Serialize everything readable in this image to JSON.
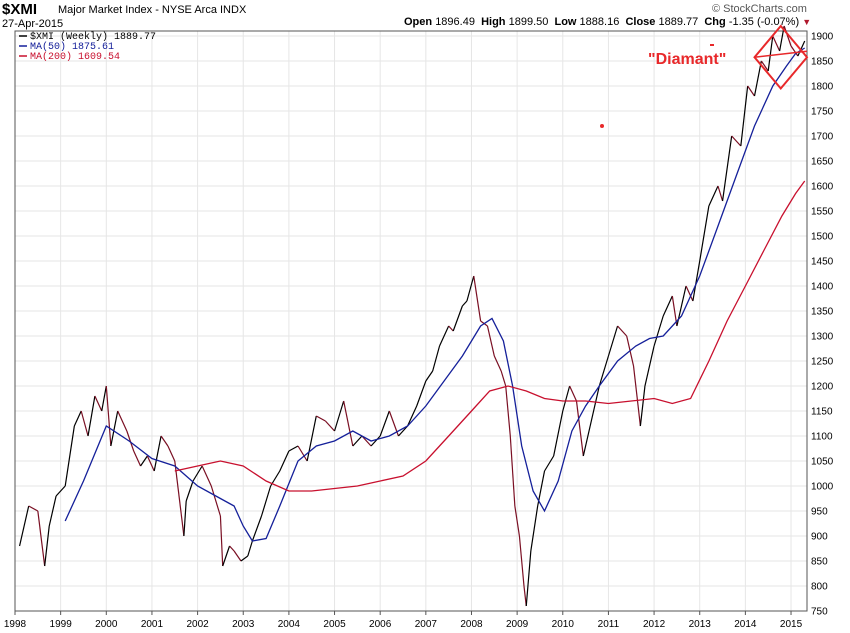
{
  "header": {
    "symbol": "$XMI",
    "index_name": "Major Market Index - NYSE Arca INDX",
    "date": "27-Apr-2015",
    "open_label": "Open",
    "open": "1896.49",
    "high_label": "High",
    "high": "1899.50",
    "low_label": "Low",
    "low": "1888.16",
    "close_label": "Close",
    "close": "1889.77",
    "chg_label": "Chg",
    "chg": "-1.35 (-0.07%)",
    "brand": "© StockCharts.com"
  },
  "legend": {
    "price": "$XMI (Weekly) 1889.77",
    "ma50": "MA(50) 1875.61",
    "ma200": "MA(200) 1609.54"
  },
  "annotation": {
    "label": "\"Diamant\""
  },
  "colors": {
    "price": "#7a0f23",
    "price_up": "#000000",
    "ma50": "#15209a",
    "ma200": "#c8102e",
    "annotation": "#e8282a",
    "grid": "#e6e6e6"
  },
  "chart_data": {
    "type": "line",
    "title": "$XMI Major Market Index - NYSE Arca INDX (Weekly)",
    "xlabel": "",
    "ylabel": "",
    "xlim": [
      1998.0,
      2015.35
    ],
    "ylim": [
      750,
      1910
    ],
    "x_ticks": [
      "1998",
      "1999",
      "2000",
      "2001",
      "2002",
      "2003",
      "2004",
      "2005",
      "2006",
      "2007",
      "2008",
      "2009",
      "2010",
      "2011",
      "2012",
      "2013",
      "2014",
      "2015"
    ],
    "y_ticks": [
      750,
      800,
      850,
      900,
      950,
      1000,
      1050,
      1100,
      1150,
      1200,
      1250,
      1300,
      1350,
      1400,
      1450,
      1500,
      1550,
      1600,
      1650,
      1700,
      1750,
      1800,
      1850,
      1900
    ],
    "series": [
      {
        "name": "$XMI (Weekly)",
        "x": [
          1998.1,
          1998.3,
          1998.5,
          1998.65,
          1998.75,
          1998.9,
          1999.1,
          1999.3,
          1999.45,
          1999.6,
          1999.75,
          1999.9,
          2000.0,
          2000.1,
          2000.25,
          2000.45,
          2000.6,
          2000.75,
          2000.9,
          2001.05,
          2001.2,
          2001.35,
          2001.5,
          2001.7,
          2001.75,
          2001.9,
          2002.1,
          2002.3,
          2002.5,
          2002.55,
          2002.7,
          2002.8,
          2002.95,
          2003.1,
          2003.2,
          2003.4,
          2003.6,
          2003.8,
          2004.0,
          2004.2,
          2004.4,
          2004.6,
          2004.8,
          2005.0,
          2005.2,
          2005.4,
          2005.6,
          2005.8,
          2006.0,
          2006.2,
          2006.4,
          2006.6,
          2006.8,
          2007.0,
          2007.15,
          2007.3,
          2007.5,
          2007.6,
          2007.8,
          2007.9,
          2008.05,
          2008.2,
          2008.35,
          2008.5,
          2008.65,
          2008.75,
          2008.85,
          2008.95,
          2009.05,
          2009.15,
          2009.2,
          2009.3,
          2009.45,
          2009.6,
          2009.8,
          2010.0,
          2010.15,
          2010.3,
          2010.45,
          2010.6,
          2010.8,
          2011.0,
          2011.2,
          2011.4,
          2011.55,
          2011.7,
          2011.8,
          2012.0,
          2012.2,
          2012.4,
          2012.5,
          2012.7,
          2012.85,
          2013.0,
          2013.2,
          2013.4,
          2013.5,
          2013.7,
          2013.9,
          2014.05,
          2014.2,
          2014.35,
          2014.5,
          2014.6,
          2014.75,
          2014.85,
          2015.0,
          2015.15,
          2015.3
        ],
        "values": [
          880,
          960,
          950,
          840,
          920,
          980,
          1000,
          1120,
          1150,
          1100,
          1180,
          1150,
          1200,
          1080,
          1150,
          1110,
          1070,
          1040,
          1060,
          1030,
          1100,
          1080,
          1050,
          900,
          970,
          1010,
          1040,
          1000,
          940,
          840,
          880,
          870,
          850,
          860,
          890,
          940,
          1000,
          1030,
          1070,
          1080,
          1050,
          1140,
          1130,
          1110,
          1170,
          1080,
          1100,
          1080,
          1100,
          1150,
          1100,
          1120,
          1160,
          1210,
          1230,
          1280,
          1320,
          1310,
          1360,
          1370,
          1420,
          1330,
          1320,
          1260,
          1230,
          1200,
          1100,
          960,
          900,
          800,
          760,
          870,
          960,
          1030,
          1060,
          1150,
          1200,
          1170,
          1060,
          1120,
          1200,
          1260,
          1320,
          1300,
          1240,
          1120,
          1200,
          1280,
          1340,
          1380,
          1320,
          1400,
          1370,
          1450,
          1560,
          1600,
          1570,
          1700,
          1680,
          1800,
          1780,
          1850,
          1830,
          1900,
          1870,
          1920,
          1880,
          1860,
          1890
        ]
      },
      {
        "name": "MA(50)",
        "x": [
          1999.1,
          1999.5,
          2000.0,
          2000.5,
          2001.0,
          2001.5,
          2002.0,
          2002.5,
          2002.8,
          2003.0,
          2003.2,
          2003.5,
          2003.8,
          2004.2,
          2004.6,
          2005.0,
          2005.4,
          2005.8,
          2006.2,
          2006.6,
          2007.0,
          2007.4,
          2007.8,
          2008.2,
          2008.45,
          2008.7,
          2008.9,
          2009.1,
          2009.35,
          2009.6,
          2009.9,
          2010.2,
          2010.5,
          2010.8,
          2011.2,
          2011.6,
          2011.9,
          2012.2,
          2012.6,
          2013.0,
          2013.4,
          2013.8,
          2014.2,
          2014.6,
          2014.9,
          2015.1,
          2015.3
        ],
        "values": [
          930,
          1010,
          1120,
          1090,
          1055,
          1040,
          1000,
          975,
          960,
          920,
          890,
          895,
          960,
          1050,
          1080,
          1090,
          1110,
          1090,
          1100,
          1120,
          1160,
          1210,
          1260,
          1320,
          1335,
          1290,
          1200,
          1080,
          990,
          950,
          1010,
          1110,
          1160,
          1200,
          1250,
          1280,
          1295,
          1300,
          1340,
          1420,
          1520,
          1620,
          1720,
          1800,
          1840,
          1865,
          1876
        ]
      },
      {
        "name": "MA(200)",
        "x": [
          2001.5,
          2002.0,
          2002.5,
          2003.0,
          2003.5,
          2004.0,
          2004.5,
          2005.0,
          2005.5,
          2006.0,
          2006.5,
          2007.0,
          2007.5,
          2008.0,
          2008.4,
          2008.8,
          2009.2,
          2009.6,
          2010.0,
          2010.5,
          2011.0,
          2011.5,
          2012.0,
          2012.4,
          2012.8,
          2013.2,
          2013.6,
          2014.0,
          2014.4,
          2014.8,
          2015.1,
          2015.3
        ],
        "values": [
          1030,
          1040,
          1050,
          1040,
          1010,
          990,
          990,
          995,
          1000,
          1010,
          1020,
          1050,
          1100,
          1150,
          1190,
          1200,
          1190,
          1175,
          1170,
          1170,
          1165,
          1170,
          1175,
          1165,
          1175,
          1250,
          1330,
          1400,
          1470,
          1540,
          1585,
          1610
        ]
      }
    ],
    "annotations": [
      {
        "text": "\"Diamant\"",
        "shape": "diamond",
        "x_range": [
          2014.2,
          2015.35
        ],
        "y_range": [
          1795,
          1920
        ]
      }
    ]
  }
}
